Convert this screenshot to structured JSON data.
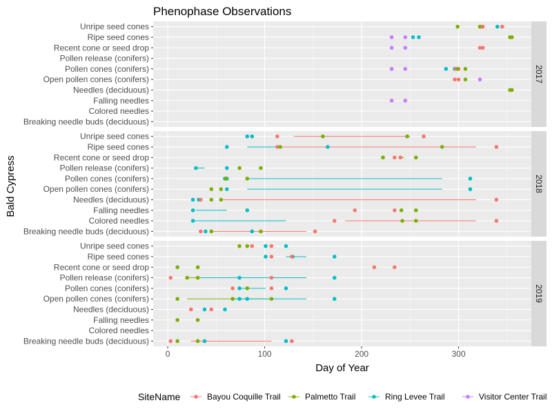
{
  "chart_data": {
    "type": "scatter",
    "title": "Phenophase Observations",
    "xlabel": "Day of Year",
    "ylabel": "Bald Cypress",
    "xlim": [
      -15,
      375
    ],
    "xticks": [
      0,
      100,
      200,
      300
    ],
    "categories": [
      "Unripe seed cones",
      "Ripe seed cones",
      "Recent cone or seed drop",
      "Pollen release (conifers)",
      "Pollen cones (conifers)",
      "Open pollen cones (conifers)",
      "Needles (deciduous)",
      "Falling needles",
      "Colored needles",
      "Breaking needle buds (deciduous)"
    ],
    "facet_by": "year",
    "legend": {
      "title": "SiteName",
      "position": "bottom",
      "series": [
        {
          "name": "Bayou Coquille Trail",
          "color": "#F8766D"
        },
        {
          "name": "Palmetto Trail",
          "color": "#7CAE00"
        },
        {
          "name": "Ring Levee Trail",
          "color": "#00BFC4"
        },
        {
          "name": "Visitor Center Trail",
          "color": "#C77CFF"
        }
      ]
    },
    "panels": [
      {
        "year": "2017",
        "points": [
          {
            "cat": "Unripe seed cones",
            "site": "Palmetto Trail",
            "x": [
              299,
              322,
              324
            ]
          },
          {
            "cat": "Unripe seed cones",
            "site": "Bayou Coquille Trail",
            "x": [
              325,
              345
            ]
          },
          {
            "cat": "Unripe seed cones",
            "site": "Ring Levee Trail",
            "x": [
              340
            ]
          },
          {
            "cat": "Ripe seed cones",
            "site": "Visitor Center Trail",
            "x": [
              231,
              245
            ]
          },
          {
            "cat": "Ripe seed cones",
            "site": "Ring Levee Trail",
            "x": [
              253,
              259
            ]
          },
          {
            "cat": "Ripe seed cones",
            "site": "Palmetto Trail",
            "x": [
              353,
              355
            ]
          },
          {
            "cat": "Recent cone or seed drop",
            "site": "Visitor Center Trail",
            "x": [
              231,
              245
            ]
          },
          {
            "cat": "Recent cone or seed drop",
            "site": "Bayou Coquille Trail",
            "x": [
              322,
              325
            ]
          },
          {
            "cat": "Pollen cones (conifers)",
            "site": "Visitor Center Trail",
            "x": [
              231,
              245
            ]
          },
          {
            "cat": "Pollen cones (conifers)",
            "site": "Ring Levee Trail",
            "x": [
              287,
              296
            ]
          },
          {
            "cat": "Pollen cones (conifers)",
            "site": "Bayou Coquille Trail",
            "x": [
              297,
              300
            ]
          },
          {
            "cat": "Pollen cones (conifers)",
            "site": "Palmetto Trail",
            "x": [
              299,
              307
            ]
          },
          {
            "cat": "Open pollen cones (conifers)",
            "site": "Bayou Coquille Trail",
            "x": [
              296,
              300
            ]
          },
          {
            "cat": "Open pollen cones (conifers)",
            "site": "Palmetto Trail",
            "x": [
              307
            ]
          },
          {
            "cat": "Open pollen cones (conifers)",
            "site": "Visitor Center Trail",
            "x": [
              322
            ]
          },
          {
            "cat": "Needles (deciduous)",
            "site": "Palmetto Trail",
            "x": [
              353,
              355
            ]
          },
          {
            "cat": "Falling needles",
            "site": "Visitor Center Trail",
            "x": [
              231,
              245
            ]
          }
        ],
        "ranges": []
      },
      {
        "year": "2018",
        "points": [
          {
            "cat": "Unripe seed cones",
            "site": "Ring Levee Trail",
            "x": [
              82,
              87
            ]
          },
          {
            "cat": "Unripe seed cones",
            "site": "Bayou Coquille Trail",
            "x": [
              113,
              264
            ]
          },
          {
            "cat": "Unripe seed cones",
            "site": "Palmetto Trail",
            "x": [
              160,
              247
            ]
          },
          {
            "cat": "Ripe seed cones",
            "site": "Ring Levee Trail",
            "x": [
              61,
              165
            ]
          },
          {
            "cat": "Ripe seed cones",
            "site": "Bayou Coquille Trail",
            "x": [
              113,
              339
            ]
          },
          {
            "cat": "Ripe seed cones",
            "site": "Palmetto Trail",
            "x": [
              116,
              283
            ]
          },
          {
            "cat": "Recent cone or seed drop",
            "site": "Palmetto Trail",
            "x": [
              222,
              256
            ]
          },
          {
            "cat": "Recent cone or seed drop",
            "site": "Bayou Coquille Trail",
            "x": [
              234,
              240
            ]
          },
          {
            "cat": "Pollen release (conifers)",
            "site": "Ring Levee Trail",
            "x": [
              29,
              61
            ]
          },
          {
            "cat": "Pollen release (conifers)",
            "site": "Palmetto Trail",
            "x": [
              74,
              96
            ]
          },
          {
            "cat": "Pollen cones (conifers)",
            "site": "Ring Levee Trail",
            "x": [
              59,
              61,
              312
            ]
          },
          {
            "cat": "Pollen cones (conifers)",
            "site": "Palmetto Trail",
            "x": [
              60,
              82
            ]
          },
          {
            "cat": "Open pollen cones (conifers)",
            "site": "Palmetto Trail",
            "x": [
              45,
              55
            ]
          },
          {
            "cat": "Open pollen cones (conifers)",
            "site": "Ring Levee Trail",
            "x": [
              61,
              312
            ]
          },
          {
            "cat": "Needles (deciduous)",
            "site": "Ring Levee Trail",
            "x": [
              26,
              32
            ]
          },
          {
            "cat": "Needles (deciduous)",
            "site": "Bayou Coquille Trail",
            "x": [
              34,
              339
            ]
          },
          {
            "cat": "Needles (deciduous)",
            "site": "Palmetto Trail",
            "x": [
              45,
              55
            ]
          },
          {
            "cat": "Falling needles",
            "site": "Ring Levee Trail",
            "x": [
              26,
              82
            ]
          },
          {
            "cat": "Falling needles",
            "site": "Bayou Coquille Trail",
            "x": [
              193,
              234
            ]
          },
          {
            "cat": "Falling needles",
            "site": "Palmetto Trail",
            "x": [
              241,
              256
            ]
          },
          {
            "cat": "Colored needles",
            "site": "Ring Levee Trail",
            "x": [
              26
            ]
          },
          {
            "cat": "Colored needles",
            "site": "Bayou Coquille Trail",
            "x": [
              172,
              339
            ]
          },
          {
            "cat": "Colored needles",
            "site": "Palmetto Trail",
            "x": [
              242,
              256
            ]
          },
          {
            "cat": "Breaking needle buds (deciduous)",
            "site": "Bayou Coquille Trail",
            "x": [
              34,
              152
            ]
          },
          {
            "cat": "Breaking needle buds (deciduous)",
            "site": "Ring Levee Trail",
            "x": [
              39,
              87
            ]
          },
          {
            "cat": "Breaking needle buds (deciduous)",
            "site": "Palmetto Trail",
            "x": [
              45,
              96
            ]
          }
        ],
        "ranges": [
          {
            "cat": "Unripe seed cones",
            "site": "Bayou Coquille Trail",
            "x": [
              130,
              250
            ]
          },
          {
            "cat": "Ripe seed cones",
            "site": "Ring Levee Trail",
            "x": [
              82,
              165
            ]
          },
          {
            "cat": "Ripe seed cones",
            "site": "Bayou Coquille Trail",
            "x": [
              113,
              318
            ]
          },
          {
            "cat": "Recent cone or seed drop",
            "site": "Palmetto Trail",
            "x": [
              239,
              244
            ]
          },
          {
            "cat": "Pollen release (conifers)",
            "site": "Ring Levee Trail",
            "x": [
              29,
              38
            ]
          },
          {
            "cat": "Pollen cones (conifers)",
            "site": "Ring Levee Trail",
            "x": [
              82,
              283
            ]
          },
          {
            "cat": "Open pollen cones (conifers)",
            "site": "Ring Levee Trail",
            "x": [
              82,
              283
            ]
          },
          {
            "cat": "Needles (deciduous)",
            "site": "Bayou Coquille Trail",
            "x": [
              55,
              318
            ]
          },
          {
            "cat": "Falling needles",
            "site": "Ring Levee Trail",
            "x": [
              29,
              61
            ]
          },
          {
            "cat": "Colored needles",
            "site": "Ring Levee Trail",
            "x": [
              26,
              122
            ]
          },
          {
            "cat": "Colored needles",
            "site": "Bayou Coquille Trail",
            "x": [
              183,
              318
            ]
          },
          {
            "cat": "Breaking needle buds (deciduous)",
            "site": "Bayou Coquille Trail",
            "x": [
              45,
              143
            ]
          }
        ]
      },
      {
        "year": "2019",
        "points": [
          {
            "cat": "Unripe seed cones",
            "site": "Palmetto Trail",
            "x": [
              74,
              82
            ]
          },
          {
            "cat": "Unripe seed cones",
            "site": "Bayou Coquille Trail",
            "x": [
              87,
              107
            ]
          },
          {
            "cat": "Unripe seed cones",
            "site": "Ring Levee Trail",
            "x": [
              101,
              122
            ]
          },
          {
            "cat": "Ripe seed cones",
            "site": "Ring Levee Trail",
            "x": [
              101,
              129,
              172
            ]
          },
          {
            "cat": "Ripe seed cones",
            "site": "Bayou Coquille Trail",
            "x": [
              107,
              128
            ]
          },
          {
            "cat": "Recent cone or seed drop",
            "site": "Palmetto Trail",
            "x": [
              10,
              31
            ]
          },
          {
            "cat": "Recent cone or seed drop",
            "site": "Bayou Coquille Trail",
            "x": [
              213,
              234
            ]
          },
          {
            "cat": "Pollen release (conifers)",
            "site": "Bayou Coquille Trail",
            "x": [
              3,
              107
            ]
          },
          {
            "cat": "Pollen release (conifers)",
            "site": "Palmetto Trail",
            "x": [
              20,
              31
            ]
          },
          {
            "cat": "Pollen release (conifers)",
            "site": "Ring Levee Trail",
            "x": [
              74,
              172
            ]
          },
          {
            "cat": "Pollen cones (conifers)",
            "site": "Bayou Coquille Trail",
            "x": [
              67,
              107
            ]
          },
          {
            "cat": "Pollen cones (conifers)",
            "site": "Ring Levee Trail",
            "x": [
              74,
              122
            ]
          },
          {
            "cat": "Pollen cones (conifers)",
            "site": "Palmetto Trail",
            "x": [
              82
            ]
          },
          {
            "cat": "Open pollen cones (conifers)",
            "site": "Palmetto Trail",
            "x": [
              10,
              67,
              107
            ]
          },
          {
            "cat": "Open pollen cones (conifers)",
            "site": "Ring Levee Trail",
            "x": [
              74,
              82,
              172
            ]
          },
          {
            "cat": "Needles (deciduous)",
            "site": "Bayou Coquille Trail",
            "x": [
              24,
              45
            ]
          },
          {
            "cat": "Needles (deciduous)",
            "site": "Ring Levee Trail",
            "x": [
              38,
              59
            ]
          },
          {
            "cat": "Falling needles",
            "site": "Palmetto Trail",
            "x": [
              10,
              31
            ]
          },
          {
            "cat": "Breaking needle buds (deciduous)",
            "site": "Bayou Coquille Trail",
            "x": [
              3,
              128
            ]
          },
          {
            "cat": "Breaking needle buds (deciduous)",
            "site": "Palmetto Trail",
            "x": [
              10,
              31
            ]
          },
          {
            "cat": "Breaking needle buds (deciduous)",
            "site": "Ring Levee Trail",
            "x": [
              38,
              122
            ]
          }
        ],
        "ranges": [
          {
            "cat": "Ripe seed cones",
            "site": "Ring Levee Trail",
            "x": [
              122,
              143
            ]
          },
          {
            "cat": "Pollen release (conifers)",
            "site": "Palmetto Trail",
            "x": [
              20,
              31
            ]
          },
          {
            "cat": "Pollen release (conifers)",
            "site": "Ring Levee Trail",
            "x": [
              31,
              143
            ]
          },
          {
            "cat": "Pollen cones (conifers)",
            "site": "Ring Levee Trail",
            "x": [
              74,
              101
            ]
          },
          {
            "cat": "Open pollen cones (conifers)",
            "site": "Palmetto Trail",
            "x": [
              20,
              107
            ]
          },
          {
            "cat": "Open pollen cones (conifers)",
            "site": "Ring Levee Trail",
            "x": [
              67,
              143
            ]
          },
          {
            "cat": "Breaking needle buds (deciduous)",
            "site": "Bayou Coquille Trail",
            "x": [
              24,
              107
            ]
          }
        ]
      }
    ]
  }
}
